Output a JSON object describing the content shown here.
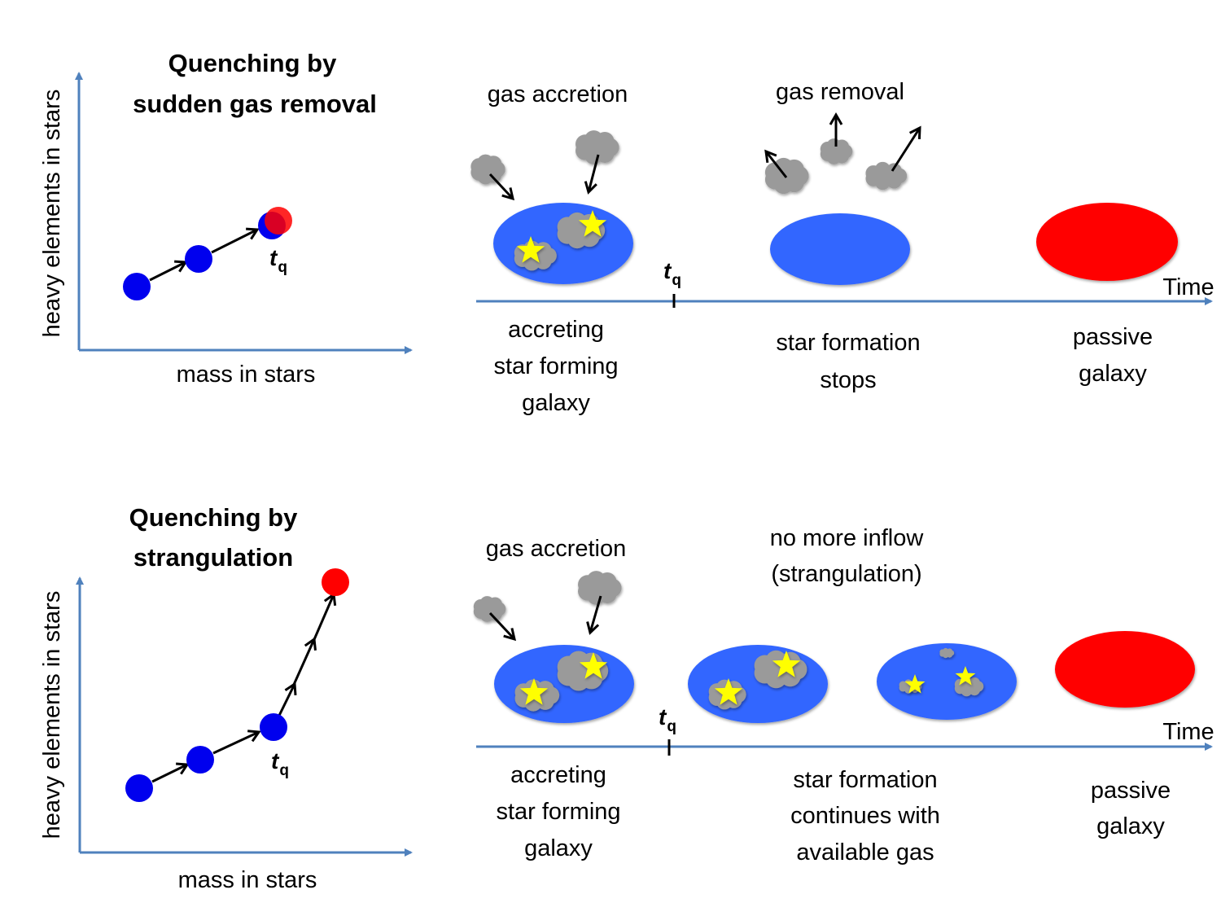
{
  "colors": {
    "axis": "#4f81bd",
    "galaxy_blue": "#3366ff",
    "dot_blue": "#0000ee",
    "passive_red": "#ff0000",
    "cloud": "#9a9a9a",
    "star": "#ffff00"
  },
  "panel_top": {
    "title": [
      "Quenching by",
      "sudden gas removal"
    ],
    "ylabel": "heavy elements in stars",
    "xlabel": "mass in stars",
    "tq": "t",
    "tq_sub": "q",
    "time_label": "Time",
    "gas_accretion": "gas accretion",
    "gas_removal": "gas removal",
    "stage1": [
      "accreting",
      "star forming",
      "galaxy"
    ],
    "stage2": [
      "star formation",
      "stops"
    ],
    "stage3": [
      "passive",
      "galaxy"
    ]
  },
  "panel_bottom": {
    "title": [
      "Quenching by",
      "strangulation"
    ],
    "ylabel": "heavy elements in stars",
    "xlabel": "mass in stars",
    "tq": "t",
    "tq_sub": "q",
    "time_label": "Time",
    "gas_accretion": "gas accretion",
    "no_inflow": [
      "no more inflow",
      "(strangulation)"
    ],
    "stage1": [
      "accreting",
      "star forming",
      "galaxy"
    ],
    "stage2": [
      "star formation",
      "continues with",
      "available gas"
    ],
    "stage3": [
      "passive",
      "galaxy"
    ]
  }
}
